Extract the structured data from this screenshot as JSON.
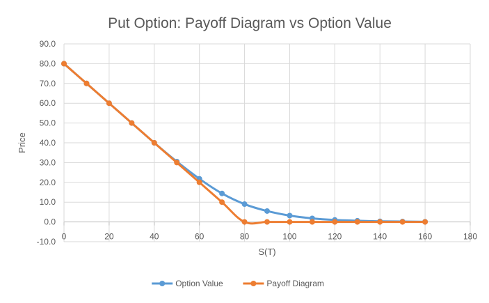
{
  "chart_data": {
    "type": "line",
    "title": "Put Option: Payoff Diagram vs Option Value",
    "xlabel": "S(T)",
    "ylabel": "Price",
    "xlim": [
      0,
      180
    ],
    "ylim": [
      -10,
      90
    ],
    "x_ticks": [
      "0",
      "20",
      "40",
      "60",
      "80",
      "100",
      "120",
      "140",
      "160",
      "180"
    ],
    "y_ticks": [
      "-10.0",
      "0.0",
      "10.0",
      "20.0",
      "30.0",
      "40.0",
      "50.0",
      "60.0",
      "70.0",
      "80.0",
      "90.0"
    ],
    "x": [
      0,
      10,
      20,
      30,
      40,
      50,
      60,
      70,
      80,
      90,
      100,
      110,
      120,
      130,
      140,
      150,
      160
    ],
    "series": [
      {
        "name": "Option Value",
        "color": "#5b9bd5",
        "values": [
          80.0,
          70.0,
          60.0,
          50.0,
          40.0,
          30.5,
          21.8,
          14.4,
          9.0,
          5.5,
          3.2,
          1.8,
          1.0,
          0.6,
          0.3,
          0.2,
          0.1
        ]
      },
      {
        "name": "Payoff Diagram",
        "color": "#ed7d31",
        "values": [
          80.0,
          70.0,
          60.0,
          50.0,
          40.0,
          30.0,
          20.0,
          10.0,
          0.0,
          0.0,
          0.0,
          0.0,
          0.0,
          0.0,
          0.0,
          0.0,
          0.0
        ]
      }
    ],
    "grid": true,
    "legend": "bottom"
  }
}
